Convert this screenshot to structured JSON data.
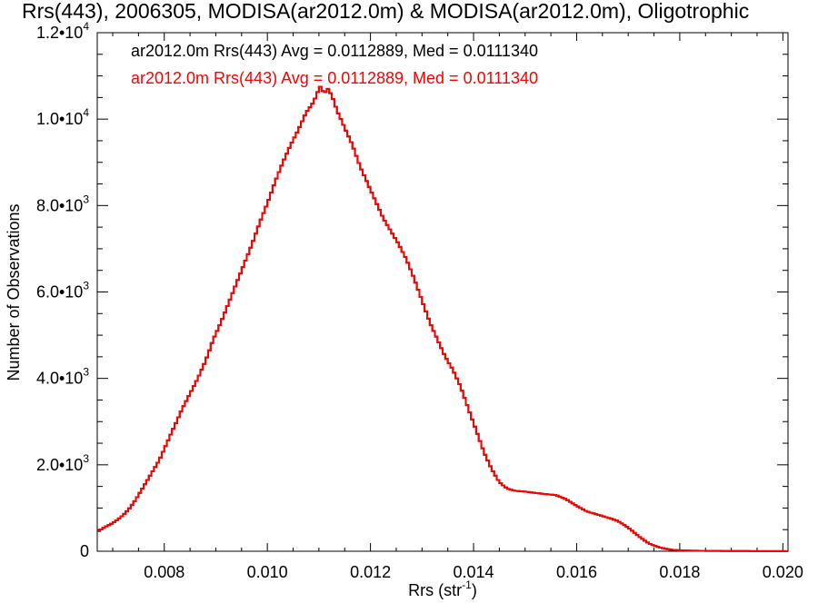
{
  "chart_data": {
    "type": "line",
    "style": "histogram-step",
    "title": "Rrs(443), 2006305, MODISA(ar2012.0m) & MODISA(ar2012.0m), Oligotrophic",
    "xlabel_base": "Rrs (str",
    "xlabel_sup": "-1",
    "xlabel_close": ")",
    "ylabel": "Number of Observations",
    "xlim": [
      0.0067,
      0.0201
    ],
    "ylim": [
      0,
      12000
    ],
    "grid": false,
    "x_ticks": [
      {
        "value": 0.008,
        "label": "0.008"
      },
      {
        "value": 0.01,
        "label": "0.010"
      },
      {
        "value": 0.012,
        "label": "0.012"
      },
      {
        "value": 0.014,
        "label": "0.014"
      },
      {
        "value": 0.016,
        "label": "0.016"
      },
      {
        "value": 0.018,
        "label": "0.018"
      },
      {
        "value": 0.02,
        "label": "0.020"
      }
    ],
    "y_ticks": [
      {
        "value": 0,
        "mant": "0",
        "exp": ""
      },
      {
        "value": 2000,
        "mant": "2.0•10",
        "exp": "3"
      },
      {
        "value": 4000,
        "mant": "4.0•10",
        "exp": "3"
      },
      {
        "value": 6000,
        "mant": "6.0•10",
        "exp": "3"
      },
      {
        "value": 8000,
        "mant": "8.0•10",
        "exp": "3"
      },
      {
        "value": 10000,
        "mant": "1.0•10",
        "exp": "4"
      },
      {
        "value": 12000,
        "mant": "1.2•10",
        "exp": "4"
      }
    ],
    "legend": {
      "placement": "top-left",
      "entries": [
        {
          "label": "ar2012.0m Rrs(443) Avg = 0.0112889, Med = 0.0111340",
          "color": "#000000"
        },
        {
          "label": "ar2012.0m Rrs(443) Avg = 0.0112889, Med = 0.0111340",
          "color": "#ff0000"
        }
      ]
    },
    "series": [
      {
        "color": "#ff0000",
        "overlaps_series_color": "#000000",
        "points": [
          [
            0.0067,
            450
          ],
          [
            0.00685,
            560
          ],
          [
            0.007,
            650
          ],
          [
            0.00715,
            780
          ],
          [
            0.0073,
            950
          ],
          [
            0.00745,
            1200
          ],
          [
            0.0076,
            1500
          ],
          [
            0.00775,
            1800
          ],
          [
            0.0079,
            2100
          ],
          [
            0.00805,
            2500
          ],
          [
            0.0082,
            2900
          ],
          [
            0.00835,
            3300
          ],
          [
            0.0085,
            3650
          ],
          [
            0.00865,
            4000
          ],
          [
            0.0088,
            4400
          ],
          [
            0.00895,
            4900
          ],
          [
            0.0091,
            5300
          ],
          [
            0.00925,
            5750
          ],
          [
            0.0094,
            6200
          ],
          [
            0.00955,
            6650
          ],
          [
            0.0097,
            7100
          ],
          [
            0.00985,
            7600
          ],
          [
            0.01,
            8050
          ],
          [
            0.01015,
            8550
          ],
          [
            0.0103,
            9000
          ],
          [
            0.01045,
            9400
          ],
          [
            0.0106,
            9750
          ],
          [
            0.01075,
            10150
          ],
          [
            0.0109,
            10400
          ],
          [
            0.011,
            10700
          ],
          [
            0.01105,
            10800
          ],
          [
            0.0111,
            10500
          ],
          [
            0.01115,
            10750
          ],
          [
            0.01125,
            10550
          ],
          [
            0.01135,
            10200
          ],
          [
            0.0115,
            9800
          ],
          [
            0.01165,
            9400
          ],
          [
            0.0118,
            8900
          ],
          [
            0.01195,
            8500
          ],
          [
            0.0121,
            8100
          ],
          [
            0.01225,
            7700
          ],
          [
            0.0124,
            7400
          ],
          [
            0.01255,
            7100
          ],
          [
            0.0127,
            6750
          ],
          [
            0.01285,
            6300
          ],
          [
            0.013,
            5800
          ],
          [
            0.01315,
            5300
          ],
          [
            0.0133,
            4900
          ],
          [
            0.01345,
            4500
          ],
          [
            0.0136,
            4200
          ],
          [
            0.01375,
            3800
          ],
          [
            0.0139,
            3300
          ],
          [
            0.01405,
            2800
          ],
          [
            0.0142,
            2300
          ],
          [
            0.01435,
            1900
          ],
          [
            0.0145,
            1600
          ],
          [
            0.01465,
            1450
          ],
          [
            0.0148,
            1400
          ],
          [
            0.015,
            1380
          ],
          [
            0.0152,
            1350
          ],
          [
            0.0154,
            1320
          ],
          [
            0.0156,
            1300
          ],
          [
            0.0158,
            1200
          ],
          [
            0.016,
            1050
          ],
          [
            0.0162,
            920
          ],
          [
            0.0164,
            850
          ],
          [
            0.0166,
            780
          ],
          [
            0.0168,
            700
          ],
          [
            0.017,
            550
          ],
          [
            0.0172,
            350
          ],
          [
            0.0174,
            180
          ],
          [
            0.0176,
            90
          ],
          [
            0.0178,
            40
          ],
          [
            0.018,
            20
          ],
          [
            0.0184,
            10
          ],
          [
            0.019,
            5
          ],
          [
            0.02,
            2
          ],
          [
            0.0201,
            0
          ]
        ]
      }
    ]
  }
}
